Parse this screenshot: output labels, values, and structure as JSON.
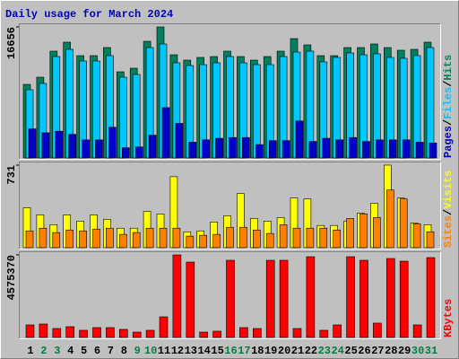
{
  "title": "Daily usage for March 2024",
  "legend_separator": "/",
  "chart_data": [
    {
      "type": "bar",
      "ylim": [
        0,
        16656
      ],
      "yticks": [
        16656
      ],
      "series": [
        {
          "name": "Hits",
          "color": "#00805c",
          "values": [
            9355,
            10267,
            13576,
            14717,
            13005,
            13005,
            14032,
            10952,
            11408,
            14831,
            16656,
            13119,
            12435,
            12777,
            12891,
            13576,
            12891,
            12435,
            12891,
            13576,
            15173,
            14374,
            13005,
            13005,
            14032,
            14032,
            14488,
            14032,
            13690,
            13804,
            14717
          ]
        },
        {
          "name": "Files",
          "color": "#00c8ff",
          "values": [
            8670,
            9469,
            12891,
            13804,
            12321,
            12321,
            13005,
            10267,
            10610,
            14032,
            14488,
            12093,
            11750,
            11864,
            12093,
            12891,
            12093,
            11864,
            11864,
            12891,
            13462,
            13576,
            12207,
            12777,
            13348,
            13119,
            13234,
            12777,
            12663,
            13005,
            14032
          ]
        },
        {
          "name": "Pages",
          "color": "#0000c8",
          "values": [
            3700,
            3200,
            3400,
            3000,
            2300,
            2300,
            3900,
            1300,
            1400,
            2900,
            6400,
            4400,
            2000,
            2300,
            2500,
            2600,
            2600,
            1700,
            2200,
            2200,
            4700,
            2100,
            2500,
            2300,
            2600,
            2100,
            2300,
            2300,
            2300,
            2000,
            1900
          ]
        }
      ]
    },
    {
      "type": "bar",
      "ylim": [
        0,
        731
      ],
      "yticks": [
        731
      ],
      "series": [
        {
          "name": "Visits",
          "color": "#ffff00",
          "values": [
            354,
            291,
            204,
            291,
            236,
            291,
            252,
            173,
            173,
            322,
            299,
            629,
            141,
            149,
            228,
            283,
            479,
            259,
            236,
            267,
            440,
            432,
            197,
            197,
            236,
            307,
            393,
            731,
            440,
            220,
            204
          ]
        },
        {
          "name": "Sites",
          "color": "#ff8000",
          "values": [
            149,
            173,
            134,
            157,
            149,
            165,
            173,
            118,
            134,
            173,
            173,
            173,
            102,
            110,
            118,
            181,
            181,
            157,
            126,
            204,
            173,
            173,
            173,
            157,
            259,
            299,
            267,
            511,
            432,
            212,
            141
          ]
        }
      ]
    },
    {
      "type": "bar",
      "ylim": [
        0,
        4575370
      ],
      "yticks": [
        4575370
      ],
      "categories": [
        "1",
        "2",
        "3",
        "4",
        "5",
        "6",
        "7",
        "8",
        "9",
        "10",
        "11",
        "12",
        "13",
        "14",
        "15",
        "16",
        "17",
        "18",
        "19",
        "20",
        "21",
        "22",
        "23",
        "24",
        "25",
        "26",
        "27",
        "28",
        "29",
        "30",
        "31"
      ],
      "category_colors": [
        "#000000",
        "#008040",
        "#008040",
        "#000000",
        "#000000",
        "#000000",
        "#000000",
        "#000000",
        "#008040",
        "#008040",
        "#000000",
        "#000000",
        "#000000",
        "#000000",
        "#000000",
        "#008040",
        "#008040",
        "#000000",
        "#000000",
        "#000000",
        "#000000",
        "#000000",
        "#008040",
        "#008040",
        "#000000",
        "#000000",
        "#000000",
        "#000000",
        "#000000",
        "#008040",
        "#008040"
      ],
      "series": [
        {
          "name": "KBytes",
          "color": "#ff0000",
          "values": [
            696000,
            746000,
            497000,
            597000,
            398000,
            547000,
            547000,
            448000,
            298000,
            398000,
            1144000,
            4575370,
            4177000,
            298000,
            348000,
            4277000,
            547000,
            497000,
            4277000,
            4277000,
            497000,
            4476000,
            398000,
            696000,
            4476000,
            4277000,
            796000,
            4376000,
            4227000,
            696000,
            4426000
          ]
        }
      ]
    }
  ]
}
